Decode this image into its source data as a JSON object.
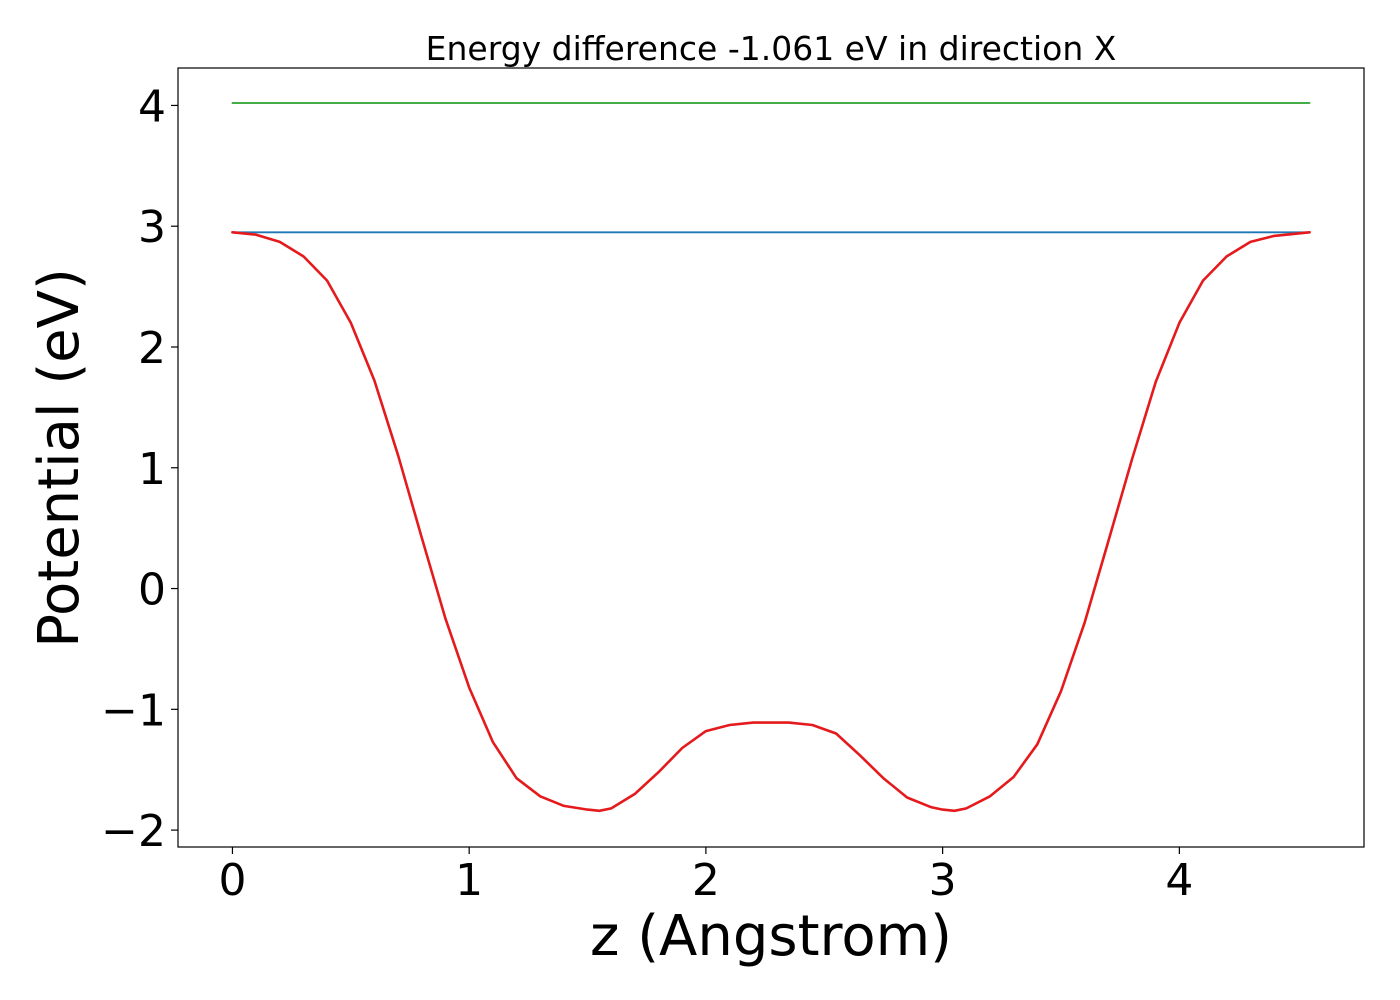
{
  "chart_data": {
    "type": "line",
    "title": "Energy difference -1.061 eV in direction X",
    "xlabel": "z (Angstrom)",
    "ylabel": "Potential (eV)",
    "xlim": [
      -0.23,
      4.78
    ],
    "ylim": [
      -2.14,
      4.31
    ],
    "xticks": [
      {
        "value": 0,
        "label": "0"
      },
      {
        "value": 1,
        "label": "1"
      },
      {
        "value": 2,
        "label": "2"
      },
      {
        "value": 3,
        "label": "3"
      },
      {
        "value": 4,
        "label": "4"
      }
    ],
    "yticks": [
      {
        "value": -2,
        "label": "−2"
      },
      {
        "value": -1,
        "label": "−1"
      },
      {
        "value": 0,
        "label": "0"
      },
      {
        "value": 1,
        "label": "1"
      },
      {
        "value": 2,
        "label": "2"
      },
      {
        "value": 3,
        "label": "3"
      },
      {
        "value": 4,
        "label": "4"
      }
    ],
    "grid": false,
    "legend": "none",
    "series": [
      {
        "color": "#2ca02c",
        "x": [
          0,
          4.55
        ],
        "y": [
          4.02,
          4.02
        ]
      },
      {
        "color": "#1f77b4",
        "x": [
          0,
          4.55
        ],
        "y": [
          2.95,
          2.95
        ]
      },
      {
        "color": "#e41a1c",
        "x": [
          0,
          0.1,
          0.2,
          0.3,
          0.4,
          0.5,
          0.6,
          0.7,
          0.8,
          0.9,
          1.0,
          1.1,
          1.2,
          1.3,
          1.4,
          1.5,
          1.55,
          1.6,
          1.7,
          1.8,
          1.9,
          2.0,
          2.1,
          2.2,
          2.275,
          2.35,
          2.45,
          2.55,
          2.65,
          2.75,
          2.85,
          2.95,
          3.0,
          3.05,
          3.1,
          3.2,
          3.3,
          3.4,
          3.5,
          3.6,
          3.7,
          3.8,
          3.9,
          4.0,
          4.1,
          4.2,
          4.3,
          4.4,
          4.55
        ],
        "y": [
          2.95,
          2.93,
          2.87,
          2.75,
          2.55,
          2.2,
          1.72,
          1.1,
          0.42,
          -0.25,
          -0.82,
          -1.27,
          -1.57,
          -1.72,
          -1.8,
          -1.83,
          -1.84,
          -1.82,
          -1.7,
          -1.52,
          -1.32,
          -1.18,
          -1.13,
          -1.11,
          -1.11,
          -1.11,
          -1.13,
          -1.2,
          -1.38,
          -1.57,
          -1.73,
          -1.81,
          -1.83,
          -1.84,
          -1.82,
          -1.72,
          -1.56,
          -1.29,
          -0.85,
          -0.28,
          0.39,
          1.07,
          1.71,
          2.2,
          2.55,
          2.75,
          2.87,
          2.92,
          2.95
        ]
      }
    ]
  }
}
